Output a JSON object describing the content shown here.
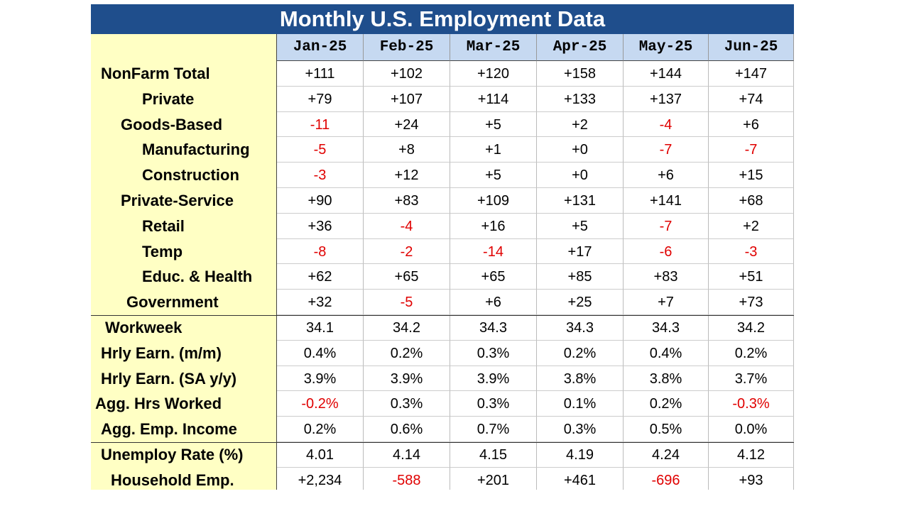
{
  "title": "Monthly U.S. Employment Data",
  "columns": [
    "Jan-25",
    "Feb-25",
    "Mar-25",
    "Apr-25",
    "May-25",
    "Jun-25"
  ],
  "rows": [
    {
      "label": "NonFarm Total",
      "values": [
        "+111",
        "+102",
        "+120",
        "+158",
        "+144",
        "+147"
      ]
    },
    {
      "label": "Private",
      "values": [
        "+79",
        "+107",
        "+114",
        "+133",
        "+137",
        "+74"
      ]
    },
    {
      "label": "Goods-Based",
      "values": [
        "-11",
        "+24",
        "+5",
        "+2",
        "-4",
        "+6"
      ]
    },
    {
      "label": "Manufacturing",
      "values": [
        "-5",
        "+8",
        "+1",
        "+0",
        "-7",
        "-7"
      ]
    },
    {
      "label": "Construction",
      "values": [
        "-3",
        "+12",
        "+5",
        "+0",
        "+6",
        "+15"
      ]
    },
    {
      "label": "Private-Service",
      "values": [
        "+90",
        "+83",
        "+109",
        "+131",
        "+141",
        "+68"
      ]
    },
    {
      "label": "Retail",
      "values": [
        "+36",
        "-4",
        "+16",
        "+5",
        "-7",
        "+2"
      ]
    },
    {
      "label": "Temp",
      "values": [
        "-8",
        "-2",
        "-14",
        "+17",
        "-6",
        "-3"
      ]
    },
    {
      "label": "Educ. & Health",
      "values": [
        "+62",
        "+65",
        "+65",
        "+85",
        "+83",
        "+51"
      ]
    },
    {
      "label": "Government",
      "values": [
        "+32",
        "-5",
        "+6",
        "+25",
        "+7",
        "+73"
      ]
    },
    {
      "label": "Workweek",
      "values": [
        "34.1",
        "34.2",
        "34.3",
        "34.3",
        "34.3",
        "34.2"
      ]
    },
    {
      "label": "Hrly Earn. (m/m)",
      "values": [
        "0.4%",
        "0.2%",
        "0.3%",
        "0.2%",
        "0.4%",
        "0.2%"
      ]
    },
    {
      "label": "Hrly Earn. (SA y/y)",
      "values": [
        "3.9%",
        "3.9%",
        "3.9%",
        "3.8%",
        "3.8%",
        "3.7%"
      ]
    },
    {
      "label": "Agg. Hrs Worked",
      "values": [
        "-0.2%",
        "0.3%",
        "0.3%",
        "0.1%",
        "0.2%",
        "-0.3%"
      ]
    },
    {
      "label": "Agg. Emp. Income",
      "values": [
        "0.2%",
        "0.6%",
        "0.7%",
        "0.3%",
        "0.5%",
        "0.0%"
      ]
    },
    {
      "label": "Unemploy Rate (%)",
      "values": [
        "4.01",
        "4.14",
        "4.15",
        "4.19",
        "4.24",
        "4.12"
      ]
    },
    {
      "label": "Household Emp.",
      "values": [
        "+2,234",
        "-588",
        "+201",
        "+461",
        "-696",
        "+93"
      ]
    }
  ]
}
